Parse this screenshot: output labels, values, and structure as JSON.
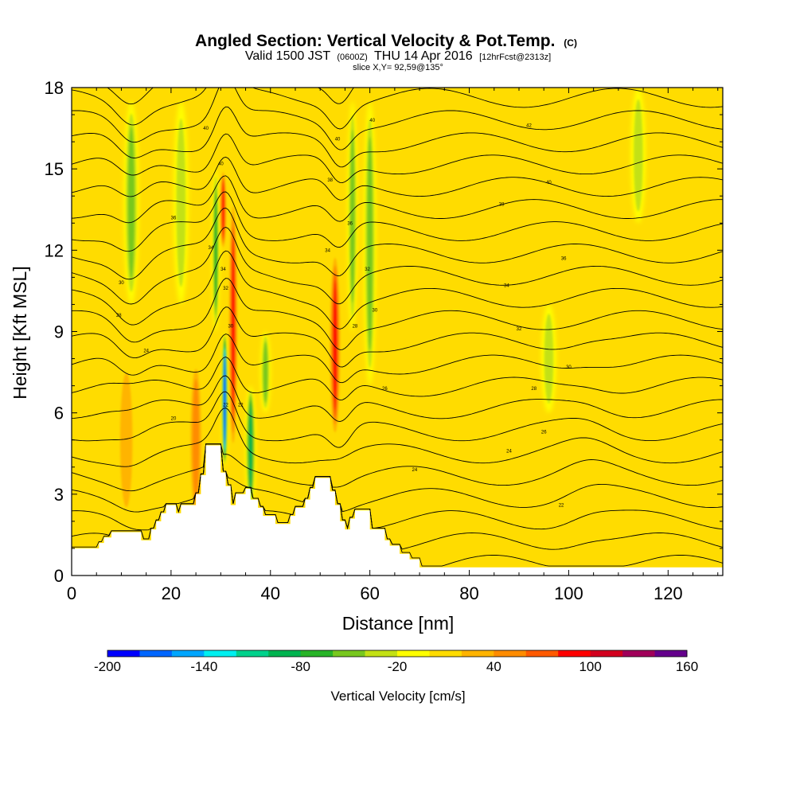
{
  "title": {
    "main": "Angled Section: Vertical Velocity & Pot.Temp.",
    "main_unit": "(C)",
    "sub_a": "Valid 1500 JST",
    "sub_b": "(0600Z)",
    "sub_c": "THU 14 Apr 2016",
    "sub_d": "[12hrFcst@2313z]",
    "slice": "slice X,Y= 92,59@135°"
  },
  "chart_data": {
    "type": "heatmap",
    "xlabel": "Distance [nm]",
    "ylabel": "Height [Kft MSL]",
    "xlim": [
      0,
      131
    ],
    "ylim": [
      0,
      18
    ],
    "x_ticks": [
      0,
      20,
      40,
      60,
      80,
      100,
      120
    ],
    "y_ticks": [
      0,
      3,
      6,
      9,
      12,
      15,
      18
    ],
    "grid": false,
    "colorbar": {
      "label": "Vertical Velocity [cm/s]",
      "tick_labels": [
        -200,
        -140,
        -80,
        -20,
        40,
        100,
        160
      ],
      "levels": [
        -200,
        -180,
        -160,
        -140,
        -120,
        -100,
        -80,
        -60,
        -40,
        -20,
        0,
        20,
        40,
        60,
        80,
        100,
        120,
        140,
        160
      ],
      "colors": [
        "#0000ff",
        "#0066ff",
        "#00a6ff",
        "#00f0f0",
        "#00d28c",
        "#00b450",
        "#28b428",
        "#78c81e",
        "#c3e114",
        "#ffff00",
        "#ffdc00",
        "#ffb400",
        "#ff8c00",
        "#ff5a00",
        "#ff0000",
        "#d2001e",
        "#a0005a",
        "#64008c"
      ],
      "background_color": "#ffdc00"
    },
    "updrafts": [
      {
        "x": 11,
        "y": [
          2,
          8
        ],
        "w": 4,
        "value": 50
      },
      {
        "x": 25,
        "y": [
          2,
          8
        ],
        "w": 3,
        "value": 60
      },
      {
        "x": 53,
        "y": [
          5,
          12
        ],
        "w": 2.5,
        "value": 100
      },
      {
        "x": 32.5,
        "y": [
          4.5,
          14
        ],
        "w": 2,
        "value": 110
      },
      {
        "x": 30.5,
        "y": [
          12,
          15
        ],
        "w": 1.5,
        "value": 100
      },
      {
        "x": 104,
        "y": [
          3,
          10
        ],
        "w": 4,
        "value": 30
      },
      {
        "x": 112,
        "y": [
          1,
          6
        ],
        "w": 4,
        "value": 30
      },
      {
        "x": 68,
        "y": [
          5,
          11
        ],
        "w": 3,
        "value": 30
      }
    ],
    "downdrafts": [
      {
        "x": 12,
        "y": [
          10,
          17.5
        ],
        "w": 3,
        "value": -60
      },
      {
        "x": 22,
        "y": [
          10,
          17.5
        ],
        "w": 3,
        "value": -50
      },
      {
        "x": 56.5,
        "y": [
          9,
          17.5
        ],
        "w": 2,
        "value": -70
      },
      {
        "x": 60,
        "y": [
          7,
          17.5
        ],
        "w": 2.5,
        "value": -60
      },
      {
        "x": 30.8,
        "y": [
          4,
          9
        ],
        "w": 1.2,
        "value": -200
      },
      {
        "x": 29,
        "y": [
          9,
          15
        ],
        "w": 1.5,
        "value": -80
      },
      {
        "x": 36,
        "y": [
          2.5,
          7
        ],
        "w": 2,
        "value": -100
      },
      {
        "x": 39,
        "y": [
          6,
          9
        ],
        "w": 2,
        "value": -60
      },
      {
        "x": 96,
        "y": [
          6,
          10
        ],
        "w": 3,
        "value": -40
      },
      {
        "x": 114,
        "y": [
          13,
          18
        ],
        "w": 3,
        "value": -40
      }
    ],
    "terrain": [
      [
        0,
        1
      ],
      [
        5.5,
        1
      ],
      [
        5.5,
        1.2
      ],
      [
        6.5,
        1.2
      ],
      [
        6.5,
        1.4
      ],
      [
        8,
        1.4
      ],
      [
        8,
        1.6
      ],
      [
        14,
        1.6
      ],
      [
        14,
        1.3
      ],
      [
        16,
        1.3
      ],
      [
        16,
        1.7
      ],
      [
        17,
        1.7
      ],
      [
        17,
        2
      ],
      [
        18,
        2
      ],
      [
        18,
        2.3
      ],
      [
        19,
        2.3
      ],
      [
        19,
        2.6
      ],
      [
        21,
        2.6
      ],
      [
        21,
        2.3
      ],
      [
        22,
        2.3
      ],
      [
        22,
        2.6
      ],
      [
        25,
        2.6
      ],
      [
        25,
        3
      ],
      [
        26,
        3
      ],
      [
        26,
        3.7
      ],
      [
        27,
        3.7
      ],
      [
        27,
        4.8
      ],
      [
        30,
        4.8
      ],
      [
        30,
        3.8
      ],
      [
        31,
        3.8
      ],
      [
        31,
        3.3
      ],
      [
        32,
        3.3
      ],
      [
        32,
        2.6
      ],
      [
        33,
        2.6
      ],
      [
        33,
        3
      ],
      [
        35,
        3
      ],
      [
        35,
        3.2
      ],
      [
        36,
        3.2
      ],
      [
        36,
        2.8
      ],
      [
        37.5,
        2.8
      ],
      [
        37.5,
        2.5
      ],
      [
        38.5,
        2.5
      ],
      [
        38.5,
        2.2
      ],
      [
        41,
        2.2
      ],
      [
        41,
        1.9
      ],
      [
        44,
        1.9
      ],
      [
        44,
        2.2
      ],
      [
        45,
        2.2
      ],
      [
        45,
        2.5
      ],
      [
        47,
        2.5
      ],
      [
        47,
        2.8
      ],
      [
        48,
        2.8
      ],
      [
        48,
        3.2
      ],
      [
        49,
        3.2
      ],
      [
        49,
        3.6
      ],
      [
        52,
        3.6
      ],
      [
        52,
        3.1
      ],
      [
        53,
        3.1
      ],
      [
        53,
        2.6
      ],
      [
        54,
        2.6
      ],
      [
        54,
        2
      ],
      [
        55,
        2
      ],
      [
        55,
        1.7
      ],
      [
        56,
        1.7
      ],
      [
        56,
        2.1
      ],
      [
        57,
        2.1
      ],
      [
        57,
        2.4
      ],
      [
        60,
        2.4
      ],
      [
        60,
        1.7
      ],
      [
        63,
        1.7
      ],
      [
        63,
        1.3
      ],
      [
        64,
        1.3
      ],
      [
        64,
        1.1
      ],
      [
        66,
        1.1
      ],
      [
        66,
        0.8
      ],
      [
        68,
        0.8
      ],
      [
        68,
        0.6
      ],
      [
        70,
        0.6
      ],
      [
        70,
        0.3
      ],
      [
        131,
        0.3
      ],
      [
        131,
        0
      ],
      [
        0,
        0
      ]
    ],
    "theta_contours": {
      "levels_C": [
        20,
        22,
        24,
        26,
        28,
        30,
        32,
        34,
        36,
        38,
        40,
        42,
        44,
        46,
        48,
        50,
        52,
        54,
        56,
        58,
        60
      ],
      "labels": [
        {
          "x": 27,
          "y": 16.5,
          "text": "40"
        },
        {
          "x": 30,
          "y": 15.2,
          "text": "40"
        },
        {
          "x": 20.5,
          "y": 13.2,
          "text": "36"
        },
        {
          "x": 28,
          "y": 12.1,
          "text": "34"
        },
        {
          "x": 30.5,
          "y": 11.3,
          "text": "34"
        },
        {
          "x": 31,
          "y": 10.6,
          "text": "32"
        },
        {
          "x": 32,
          "y": 9.2,
          "text": "30"
        },
        {
          "x": 10,
          "y": 10.8,
          "text": "30"
        },
        {
          "x": 9.5,
          "y": 9.6,
          "text": "28"
        },
        {
          "x": 15,
          "y": 8.3,
          "text": "24"
        },
        {
          "x": 20.5,
          "y": 5.8,
          "text": "20"
        },
        {
          "x": 31,
          "y": 6.3,
          "text": "22"
        },
        {
          "x": 34,
          "y": 6.3,
          "text": "22"
        },
        {
          "x": 53.5,
          "y": 16.1,
          "text": "40"
        },
        {
          "x": 60.5,
          "y": 16.8,
          "text": "40"
        },
        {
          "x": 52,
          "y": 14.6,
          "text": "38"
        },
        {
          "x": 56,
          "y": 13,
          "text": "36"
        },
        {
          "x": 51.5,
          "y": 12,
          "text": "34"
        },
        {
          "x": 59.5,
          "y": 11.3,
          "text": "32"
        },
        {
          "x": 61,
          "y": 9.8,
          "text": "30"
        },
        {
          "x": 57,
          "y": 9.2,
          "text": "28"
        },
        {
          "x": 63,
          "y": 6.9,
          "text": "26"
        },
        {
          "x": 69,
          "y": 3.9,
          "text": "24"
        },
        {
          "x": 92,
          "y": 16.6,
          "text": "42"
        },
        {
          "x": 96,
          "y": 14.5,
          "text": "40"
        },
        {
          "x": 86.5,
          "y": 13.7,
          "text": "38"
        },
        {
          "x": 99,
          "y": 11.7,
          "text": "36"
        },
        {
          "x": 87.5,
          "y": 10.7,
          "text": "34"
        },
        {
          "x": 90,
          "y": 9.1,
          "text": "32"
        },
        {
          "x": 100,
          "y": 7.7,
          "text": "30"
        },
        {
          "x": 93,
          "y": 6.9,
          "text": "28"
        },
        {
          "x": 95,
          "y": 5.3,
          "text": "26"
        },
        {
          "x": 88,
          "y": 4.6,
          "text": "24"
        },
        {
          "x": 98.5,
          "y": 2.6,
          "text": "22"
        }
      ]
    }
  }
}
